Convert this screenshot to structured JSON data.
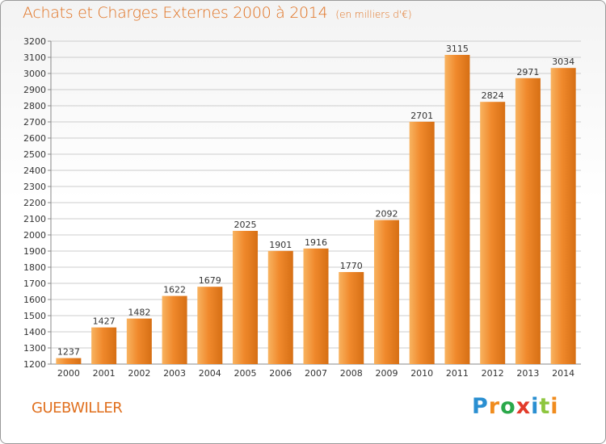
{
  "header": {
    "title": "Achats et Charges Externes 2000 à 2014",
    "subtitle": "(en milliers d'€)"
  },
  "footer": {
    "city": "GUEBWILLER",
    "logo": [
      "P",
      "r",
      "o",
      "x",
      "i",
      "t",
      "i"
    ]
  },
  "chart_data": {
    "type": "bar",
    "title": "Achats et Charges Externes 2000 à 2014",
    "subtitle": "(en milliers d'€)",
    "categories": [
      "2000",
      "2001",
      "2002",
      "2003",
      "2004",
      "2005",
      "2006",
      "2007",
      "2008",
      "2009",
      "2010",
      "2011",
      "2012",
      "2013",
      "2014"
    ],
    "values": [
      1237,
      1427,
      1482,
      1622,
      1679,
      2025,
      1901,
      1916,
      1770,
      2092,
      2701,
      3115,
      2824,
      2971,
      3034
    ],
    "ylim": [
      1200,
      3200
    ],
    "ytick_step": 100,
    "grid": true,
    "bar_color": "#f0892c",
    "bar_highlight": "#f8b360",
    "bar_shadow": "#d66f14",
    "grid_color": "#cccccc",
    "text_color": "#333333",
    "accent": "#e0701f"
  }
}
